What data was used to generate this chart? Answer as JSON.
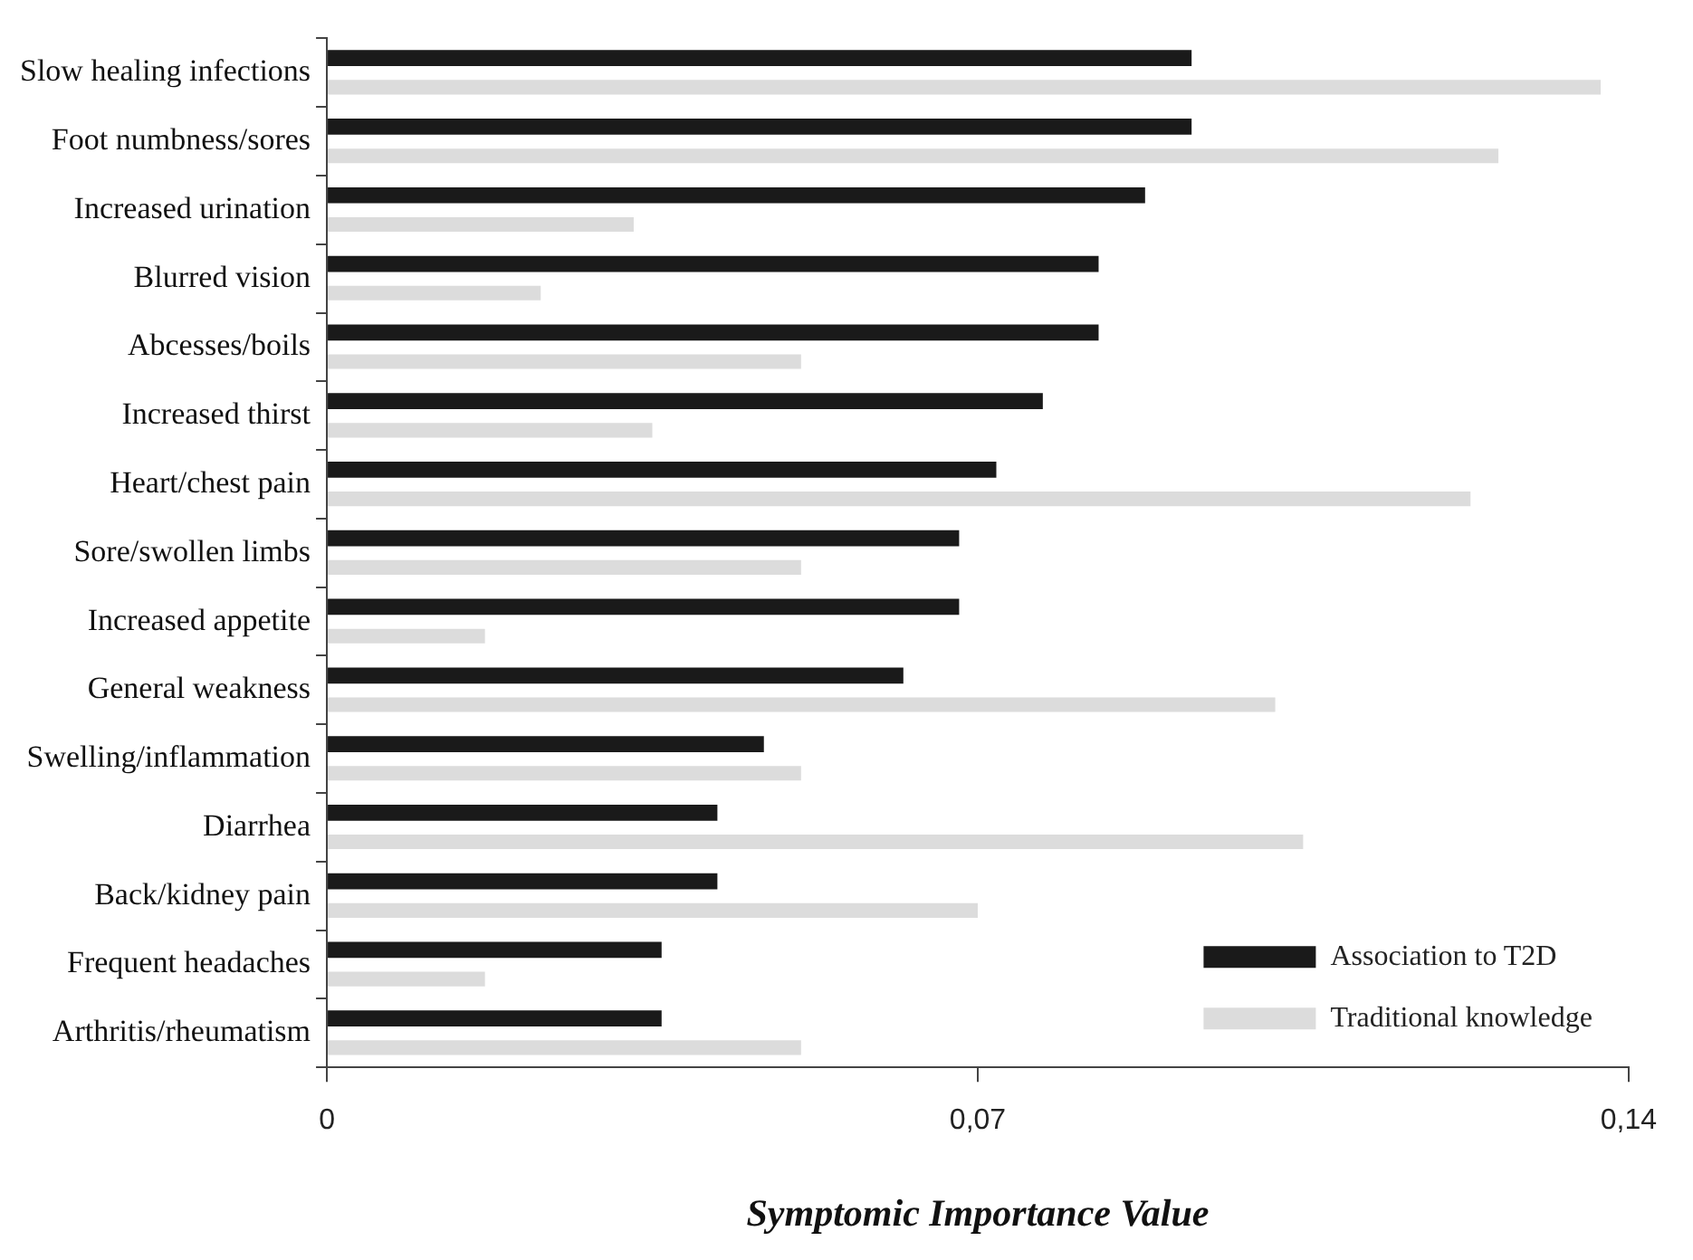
{
  "chart_data": {
    "type": "bar",
    "orientation": "horizontal",
    "xlabel": "Symptomic Importance Value",
    "categories": [
      "Slow healing infections",
      "Foot numbness/sores",
      "Increased urination",
      "Blurred vision",
      "Abcesses/boils",
      "Increased thirst",
      "Heart/chest pain",
      "Sore/swollen limbs",
      "Increased appetite",
      "General weakness",
      "Swelling/inflammation",
      "Diarrhea",
      "Back/kidney pain",
      "Frequent headaches",
      "Arthritis/rheumatism"
    ],
    "series": [
      {
        "name": "Association to T2D",
        "color": "#1a1a1a",
        "values": [
          0.093,
          0.093,
          0.088,
          0.083,
          0.083,
          0.077,
          0.072,
          0.068,
          0.068,
          0.062,
          0.047,
          0.042,
          0.042,
          0.036,
          0.036
        ]
      },
      {
        "name": "Traditional knowledge",
        "color": "#dcdcdc",
        "values": [
          0.137,
          0.126,
          0.033,
          0.023,
          0.051,
          0.035,
          0.123,
          0.051,
          0.017,
          0.102,
          0.051,
          0.105,
          0.07,
          0.017,
          0.051
        ]
      }
    ],
    "xlim": [
      0,
      0.14
    ],
    "xticks": [
      {
        "value": 0,
        "label": "0"
      },
      {
        "value": 0.07,
        "label": "0,07"
      },
      {
        "value": 0.14,
        "label": "0,14"
      }
    ],
    "grid": false,
    "legend": "bottom right"
  }
}
